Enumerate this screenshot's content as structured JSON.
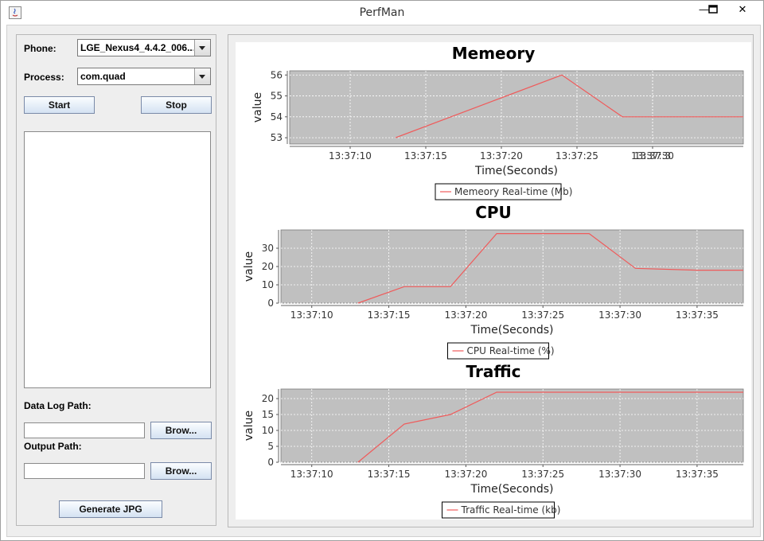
{
  "window": {
    "title": "PerfMan",
    "minimize_glyph": "—",
    "maximize_glyph": "□",
    "close_glyph": "✕"
  },
  "controls": {
    "phone_label": "Phone:",
    "phone_value": "LGE_Nexus4_4.4.2_006...",
    "process_label": "Process:",
    "process_value": "com.quad",
    "start_label": "Start",
    "stop_label": "Stop",
    "data_log_label": "Data Log Path:",
    "data_log_value": "",
    "browse1_label": "Brow...",
    "output_label": "Output Path:",
    "output_value": "",
    "browse2_label": "Brow...",
    "generate_label": "Generate JPG"
  },
  "colors": {
    "plot_bg": "#c0c0c0",
    "series": "#ef5b5b",
    "grid": "#ffffff"
  },
  "chart_data": [
    {
      "type": "line",
      "title": "Memeory",
      "xlabel": "Time(Seconds)",
      "ylabel": "value",
      "xlim": [
        "13:37:06",
        "13:37:36"
      ],
      "ylim": [
        52.7,
        56.2
      ],
      "x_ticks": [
        "13:37:10",
        "13:37:15",
        "13:37:20",
        "13:37:25",
        "13:37:30",
        "13:37:3"
      ],
      "y_ticks": [
        53,
        54,
        55,
        56
      ],
      "grid": true,
      "legend_position": "bottom",
      "series": [
        {
          "name": "Memeory Real-time (Mb)",
          "x": [
            "13:37:13",
            "13:37:24",
            "13:37:28",
            "13:37:36"
          ],
          "values": [
            53,
            56,
            54,
            54
          ]
        }
      ]
    },
    {
      "type": "line",
      "title": "CPU",
      "xlabel": "Time(Seconds)",
      "ylabel": "value",
      "xlim": [
        "13:37:08",
        "13:37:38"
      ],
      "ylim": [
        0,
        40
      ],
      "x_ticks": [
        "13:37:10",
        "13:37:15",
        "13:37:20",
        "13:37:25",
        "13:37:30",
        "13:37:35"
      ],
      "y_ticks": [
        0,
        10,
        20,
        30
      ],
      "grid": true,
      "legend_position": "bottom",
      "series": [
        {
          "name": "CPU Real-time (%)",
          "x": [
            "13:37:13",
            "13:37:16",
            "13:37:19",
            "13:37:22",
            "13:37:28",
            "13:37:31",
            "13:37:35",
            "13:37:38"
          ],
          "values": [
            0,
            9,
            9,
            38,
            38,
            19,
            18,
            18
          ]
        }
      ]
    },
    {
      "type": "line",
      "title": "Traffic",
      "xlabel": "Time(Seconds)",
      "ylabel": "value",
      "xlim": [
        "13:37:08",
        "13:37:38"
      ],
      "ylim": [
        0,
        23
      ],
      "x_ticks": [
        "13:37:10",
        "13:37:15",
        "13:37:20",
        "13:37:25",
        "13:37:30",
        "13:37:35"
      ],
      "y_ticks": [
        0,
        5,
        10,
        15,
        20
      ],
      "grid": true,
      "legend_position": "bottom",
      "series": [
        {
          "name": "Traffic Real-time (kb)",
          "x": [
            "13:37:13",
            "13:37:16",
            "13:37:19",
            "13:37:22",
            "13:37:38"
          ],
          "values": [
            0,
            12,
            15,
            22,
            22
          ]
        }
      ]
    }
  ]
}
